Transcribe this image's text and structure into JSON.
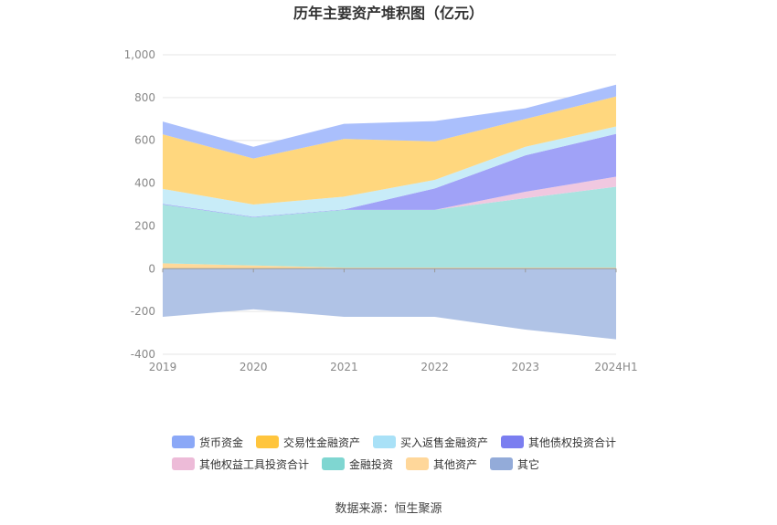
{
  "chart_data": {
    "type": "area",
    "stacked": true,
    "title": "历年主要资产堆积图（亿元）",
    "categories": [
      "2019",
      "2020",
      "2021",
      "2022",
      "2023",
      "2024H1"
    ],
    "ylim": [
      -400,
      1000
    ],
    "yticks": [
      "-400",
      "-200",
      "0",
      "200",
      "400",
      "600",
      "800",
      "1,000"
    ],
    "grid": true,
    "legend_position": "bottom",
    "series": [
      {
        "name": "其他资产",
        "color": "#ffd99a",
        "values": [
          25,
          15,
          5,
          5,
          5,
          5
        ]
      },
      {
        "name": "金融投资",
        "color": "#a8e3e0",
        "values": [
          275,
          225,
          270,
          270,
          325,
          378
        ]
      },
      {
        "name": "其他权益工具投资合计",
        "color": "#f0c8e0",
        "values": [
          0,
          0,
          0,
          0,
          30,
          47
        ]
      },
      {
        "name": "其他债权投资合计",
        "color": "#a0a2f7",
        "values": [
          3,
          3,
          2,
          100,
          170,
          200
        ]
      },
      {
        "name": "买入返售金融资产",
        "color": "#c8ecf8",
        "values": [
          70,
          57,
          60,
          40,
          40,
          35
        ]
      },
      {
        "name": "交易性金融资产",
        "color": "#ffd77e",
        "values": [
          255,
          215,
          270,
          180,
          130,
          140
        ]
      },
      {
        "name": "货币资金",
        "color": "#aabffc",
        "values": [
          60,
          55,
          70,
          95,
          50,
          55
        ]
      },
      {
        "name": "其它",
        "color": "#b0c3e6",
        "values": [
          -225,
          -190,
          -225,
          -225,
          -285,
          -330
        ]
      }
    ],
    "legend_rows": [
      [
        {
          "name": "货币资金",
          "color": "#8ba8f7"
        },
        {
          "name": "交易性金融资产",
          "color": "#ffc53d"
        },
        {
          "name": "买入返售金融资产",
          "color": "#a9e1f7"
        },
        {
          "name": "其他债权投资合计",
          "color": "#7b7ef0"
        }
      ],
      [
        {
          "name": "其他权益工具投资合计",
          "color": "#edbbd8"
        },
        {
          "name": "金融投资",
          "color": "#7fd6d1"
        },
        {
          "name": "其他资产",
          "color": "#ffd79a"
        },
        {
          "name": "其它",
          "color": "#93abd9"
        }
      ]
    ]
  },
  "source": "数据来源：恒生聚源"
}
